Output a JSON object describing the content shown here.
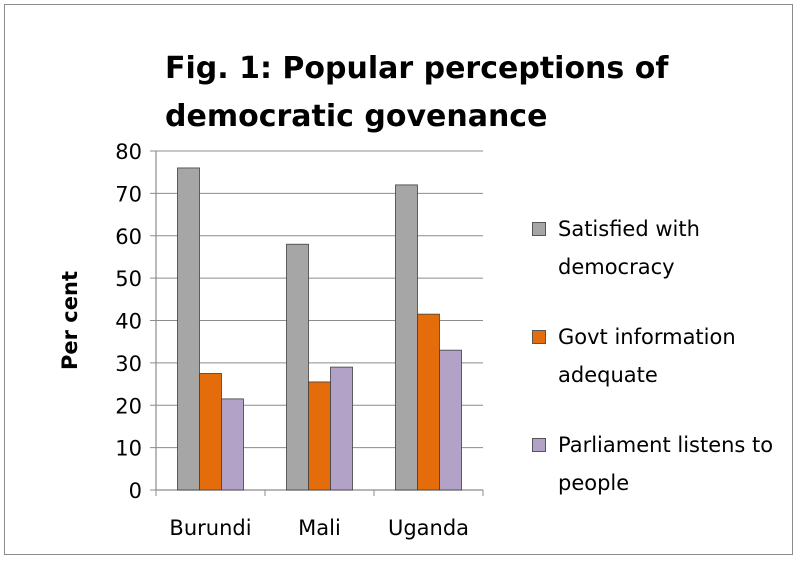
{
  "chart_data": {
    "type": "bar",
    "title": "Fig. 1: Popular perceptions of democratic govenance",
    "ylabel": "Per cent",
    "xlabel": "",
    "ylim": [
      0,
      80
    ],
    "yticks": [
      0,
      10,
      20,
      30,
      40,
      50,
      60,
      70,
      80
    ],
    "grid": true,
    "legend_position": "right",
    "categories": [
      "Burundi",
      "Mali",
      "Uganda"
    ],
    "series": [
      {
        "name": "Satisfied with democracy",
        "color": "#a6a6a6",
        "values": [
          76,
          58,
          72
        ]
      },
      {
        "name": "Govt information adequate",
        "color": "#e46c0a",
        "values": [
          27.5,
          25.5,
          41.5
        ]
      },
      {
        "name": "Parliament listens to people",
        "color": "#b3a2c7",
        "values": [
          21.5,
          29,
          33
        ]
      }
    ]
  }
}
